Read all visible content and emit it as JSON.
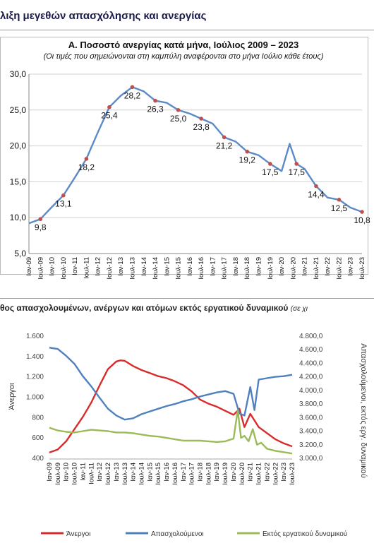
{
  "header": {
    "title": "λιξη μεγεθών απασχόλησης και ανεργίας",
    "chart_b_title": "θος απασχολουμένων, ανέργων και ατόμων εκτός εργατικού δυναμικού",
    "chart_b_title_paren": "(σε χι"
  },
  "x_labels": [
    "Ιαν-09",
    "Ιουλ-09",
    "Ιαν-10",
    "Ιουλ-10",
    "Ιαν-11",
    "Ιουλ-11",
    "Ιαν-12",
    "Ιουλ-12",
    "Ιαν-13",
    "Ιουλ-13",
    "Ιαν-14",
    "Ιουλ-14",
    "Ιαν-15",
    "Ιουλ-15",
    "Ιαν-16",
    "Ιουλ-16",
    "Ιαν-17",
    "Ιουλ-17",
    "Ιαν-18",
    "Ιουλ-18",
    "Ιαν-19",
    "Ιουλ-19",
    "Ιαν-20",
    "Ιουλ-20",
    "Ιαν-21",
    "Ιουλ-21",
    "Ιαν-22",
    "Ιουλ-22",
    "Ιαν-23",
    "Ιουλ-23"
  ],
  "chart_data": [
    {
      "type": "line",
      "title": "Α. Ποσοστό ανεργίας κατά μήνα, Ιούλιος 2009 – 2023",
      "subtitle": "(Οι τιμές που σημειώνονται στη καμπύλη αναφέρονται στο μήνα Ιούλιο κάθε έτους)",
      "ylim": [
        5,
        30
      ],
      "yticks": [
        "5,0",
        "10,0",
        "15,0",
        "20,0",
        "25,0",
        "30,0"
      ],
      "grid": true,
      "series": [
        {
          "color": "#5b8ac9",
          "x": [
            0,
            1,
            2,
            3,
            4,
            5,
            6,
            7,
            8,
            9,
            10,
            11,
            12,
            13,
            14,
            15,
            16,
            17,
            18,
            19,
            20,
            21,
            22,
            22.7,
            23.3,
            24,
            25,
            26,
            27,
            28,
            29
          ],
          "y": [
            9.2,
            9.8,
            11.5,
            13.1,
            15.6,
            18.2,
            21.9,
            25.4,
            27.0,
            28.2,
            27.6,
            26.3,
            26.0,
            25.0,
            24.5,
            23.8,
            23.1,
            21.2,
            20.6,
            19.2,
            18.7,
            17.5,
            16.5,
            20.3,
            17.5,
            16.8,
            14.4,
            12.8,
            12.5,
            11.4,
            10.8
          ]
        }
      ],
      "marker_color": "#c0504d",
      "labels": [
        {
          "x": 1,
          "y": 9.8,
          "text": "9,8"
        },
        {
          "x": 3,
          "y": 13.1,
          "text": "13,1"
        },
        {
          "x": 5,
          "y": 18.2,
          "text": "18,2"
        },
        {
          "x": 7,
          "y": 25.4,
          "text": "25,4"
        },
        {
          "x": 9,
          "y": 28.2,
          "text": "28,2"
        },
        {
          "x": 11,
          "y": 26.3,
          "text": "26,3"
        },
        {
          "x": 13,
          "y": 25.0,
          "text": "25,0"
        },
        {
          "x": 15,
          "y": 23.8,
          "text": "23,8"
        },
        {
          "x": 17,
          "y": 21.2,
          "text": "21,2"
        },
        {
          "x": 19,
          "y": 19.2,
          "text": "19,2"
        },
        {
          "x": 21,
          "y": 17.5,
          "text": "17,5"
        },
        {
          "x": 23.3,
          "y": 17.5,
          "text": "17,5"
        },
        {
          "x": 25,
          "y": 14.4,
          "text": "14,4"
        },
        {
          "x": 27,
          "y": 12.5,
          "text": "12,5"
        },
        {
          "x": 29,
          "y": 10.8,
          "text": "10,8"
        }
      ]
    },
    {
      "type": "line",
      "ylabel_left": "Άνεργοι",
      "ylabel_right": "Απασχολούμενοι, εκτός εργ. δυναμικού",
      "ylim_left": [
        400,
        1600
      ],
      "ylim_right": [
        3000,
        4800
      ],
      "yticks_left": [
        "400",
        "600",
        "800",
        "1.000",
        "1.200",
        "1.400",
        "1.600"
      ],
      "yticks_right": [
        "3.000,0",
        "3.200,0",
        "3.400,0",
        "3.600,0",
        "3.800,0",
        "4.000,0",
        "4.200,0",
        "4.400,0",
        "4.600,0",
        "4.800,0"
      ],
      "series": [
        {
          "name": "Άνεργοι",
          "axis": "left",
          "color": "#d92b2b",
          "x": [
            0,
            1,
            2,
            3,
            4,
            5,
            6,
            7,
            8,
            8.5,
            9,
            10,
            11,
            12,
            13,
            14,
            15,
            16,
            17,
            18,
            19,
            20,
            21,
            22,
            22.7,
            23.3,
            24,
            25,
            26,
            27,
            28,
            29
          ],
          "y": [
            450,
            480,
            560,
            680,
            800,
            940,
            1110,
            1270,
            1345,
            1355,
            1350,
            1300,
            1260,
            1230,
            1200,
            1180,
            1150,
            1110,
            1050,
            970,
            930,
            900,
            860,
            820,
            880,
            700,
            830,
            700,
            640,
            580,
            540,
            510
          ]
        },
        {
          "name": "Απασχολούμενοι",
          "axis": "right",
          "color": "#4f81bd",
          "x": [
            0,
            1,
            2,
            3,
            4,
            5,
            6,
            7,
            8,
            9,
            10,
            11,
            12,
            13,
            14,
            15,
            16,
            17,
            18,
            19,
            20,
            21,
            22,
            22.7,
            23.3,
            24,
            24.5,
            25,
            26,
            27,
            28,
            29
          ],
          "y": [
            4620,
            4600,
            4500,
            4380,
            4200,
            4050,
            3880,
            3720,
            3620,
            3560,
            3580,
            3640,
            3680,
            3720,
            3760,
            3790,
            3830,
            3860,
            3900,
            3930,
            3960,
            3980,
            3940,
            3650,
            3620,
            4040,
            3700,
            4150,
            4170,
            4190,
            4200,
            4220
          ]
        },
        {
          "name": "Εκτός εργατικού δυναμικού",
          "axis": "right",
          "color": "#9bbb59",
          "x": [
            0,
            1,
            2,
            3,
            4,
            5,
            6,
            7,
            8,
            9,
            10,
            11,
            12,
            13,
            14,
            15,
            16,
            17,
            18,
            19,
            20,
            21,
            22,
            22.5,
            22.9,
            23.3,
            23.8,
            24.3,
            24.8,
            25.3,
            26,
            27,
            28,
            29
          ],
          "y": [
            3440,
            3400,
            3380,
            3370,
            3390,
            3410,
            3400,
            3390,
            3370,
            3370,
            3360,
            3340,
            3320,
            3310,
            3290,
            3270,
            3250,
            3250,
            3250,
            3240,
            3230,
            3240,
            3280,
            3700,
            3290,
            3320,
            3240,
            3420,
            3190,
            3220,
            3130,
            3100,
            3080,
            3060
          ]
        }
      ],
      "legend": "bottom"
    }
  ]
}
